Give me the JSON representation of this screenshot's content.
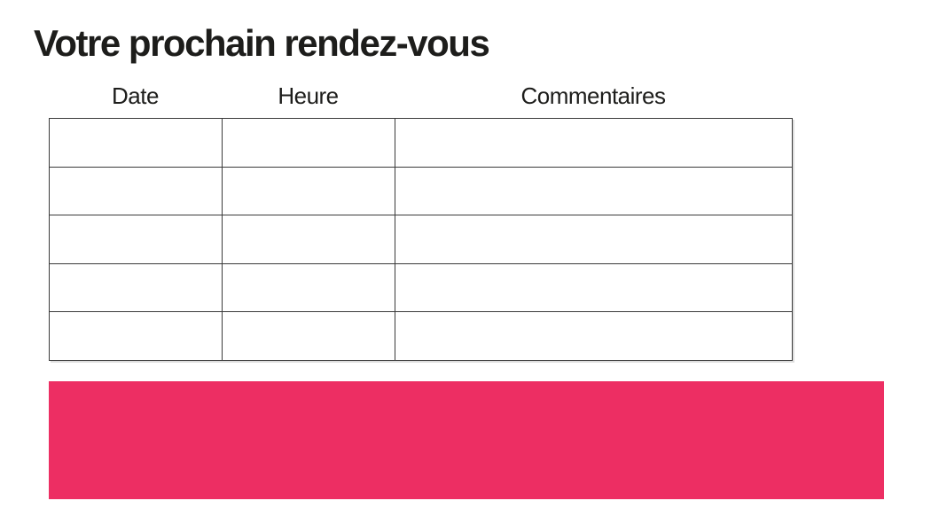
{
  "page": {
    "title": "Votre prochain rendez-vous"
  },
  "table": {
    "headers": [
      {
        "id": "date",
        "label": "Date"
      },
      {
        "id": "heure",
        "label": "Heure"
      },
      {
        "id": "commentaires",
        "label": "Commentaires"
      }
    ],
    "rows": [
      [
        "",
        "",
        ""
      ],
      [
        "",
        "",
        ""
      ],
      [
        "",
        "",
        ""
      ],
      [
        "",
        "",
        ""
      ],
      [
        "",
        "",
        ""
      ]
    ]
  },
  "banner": {
    "background": "#ED2E63"
  },
  "colors": {
    "accent_pink": "#ED2E63",
    "table_border": "#3A3A3A",
    "text": "#1D1D1B",
    "background": "#FFFFFF"
  }
}
